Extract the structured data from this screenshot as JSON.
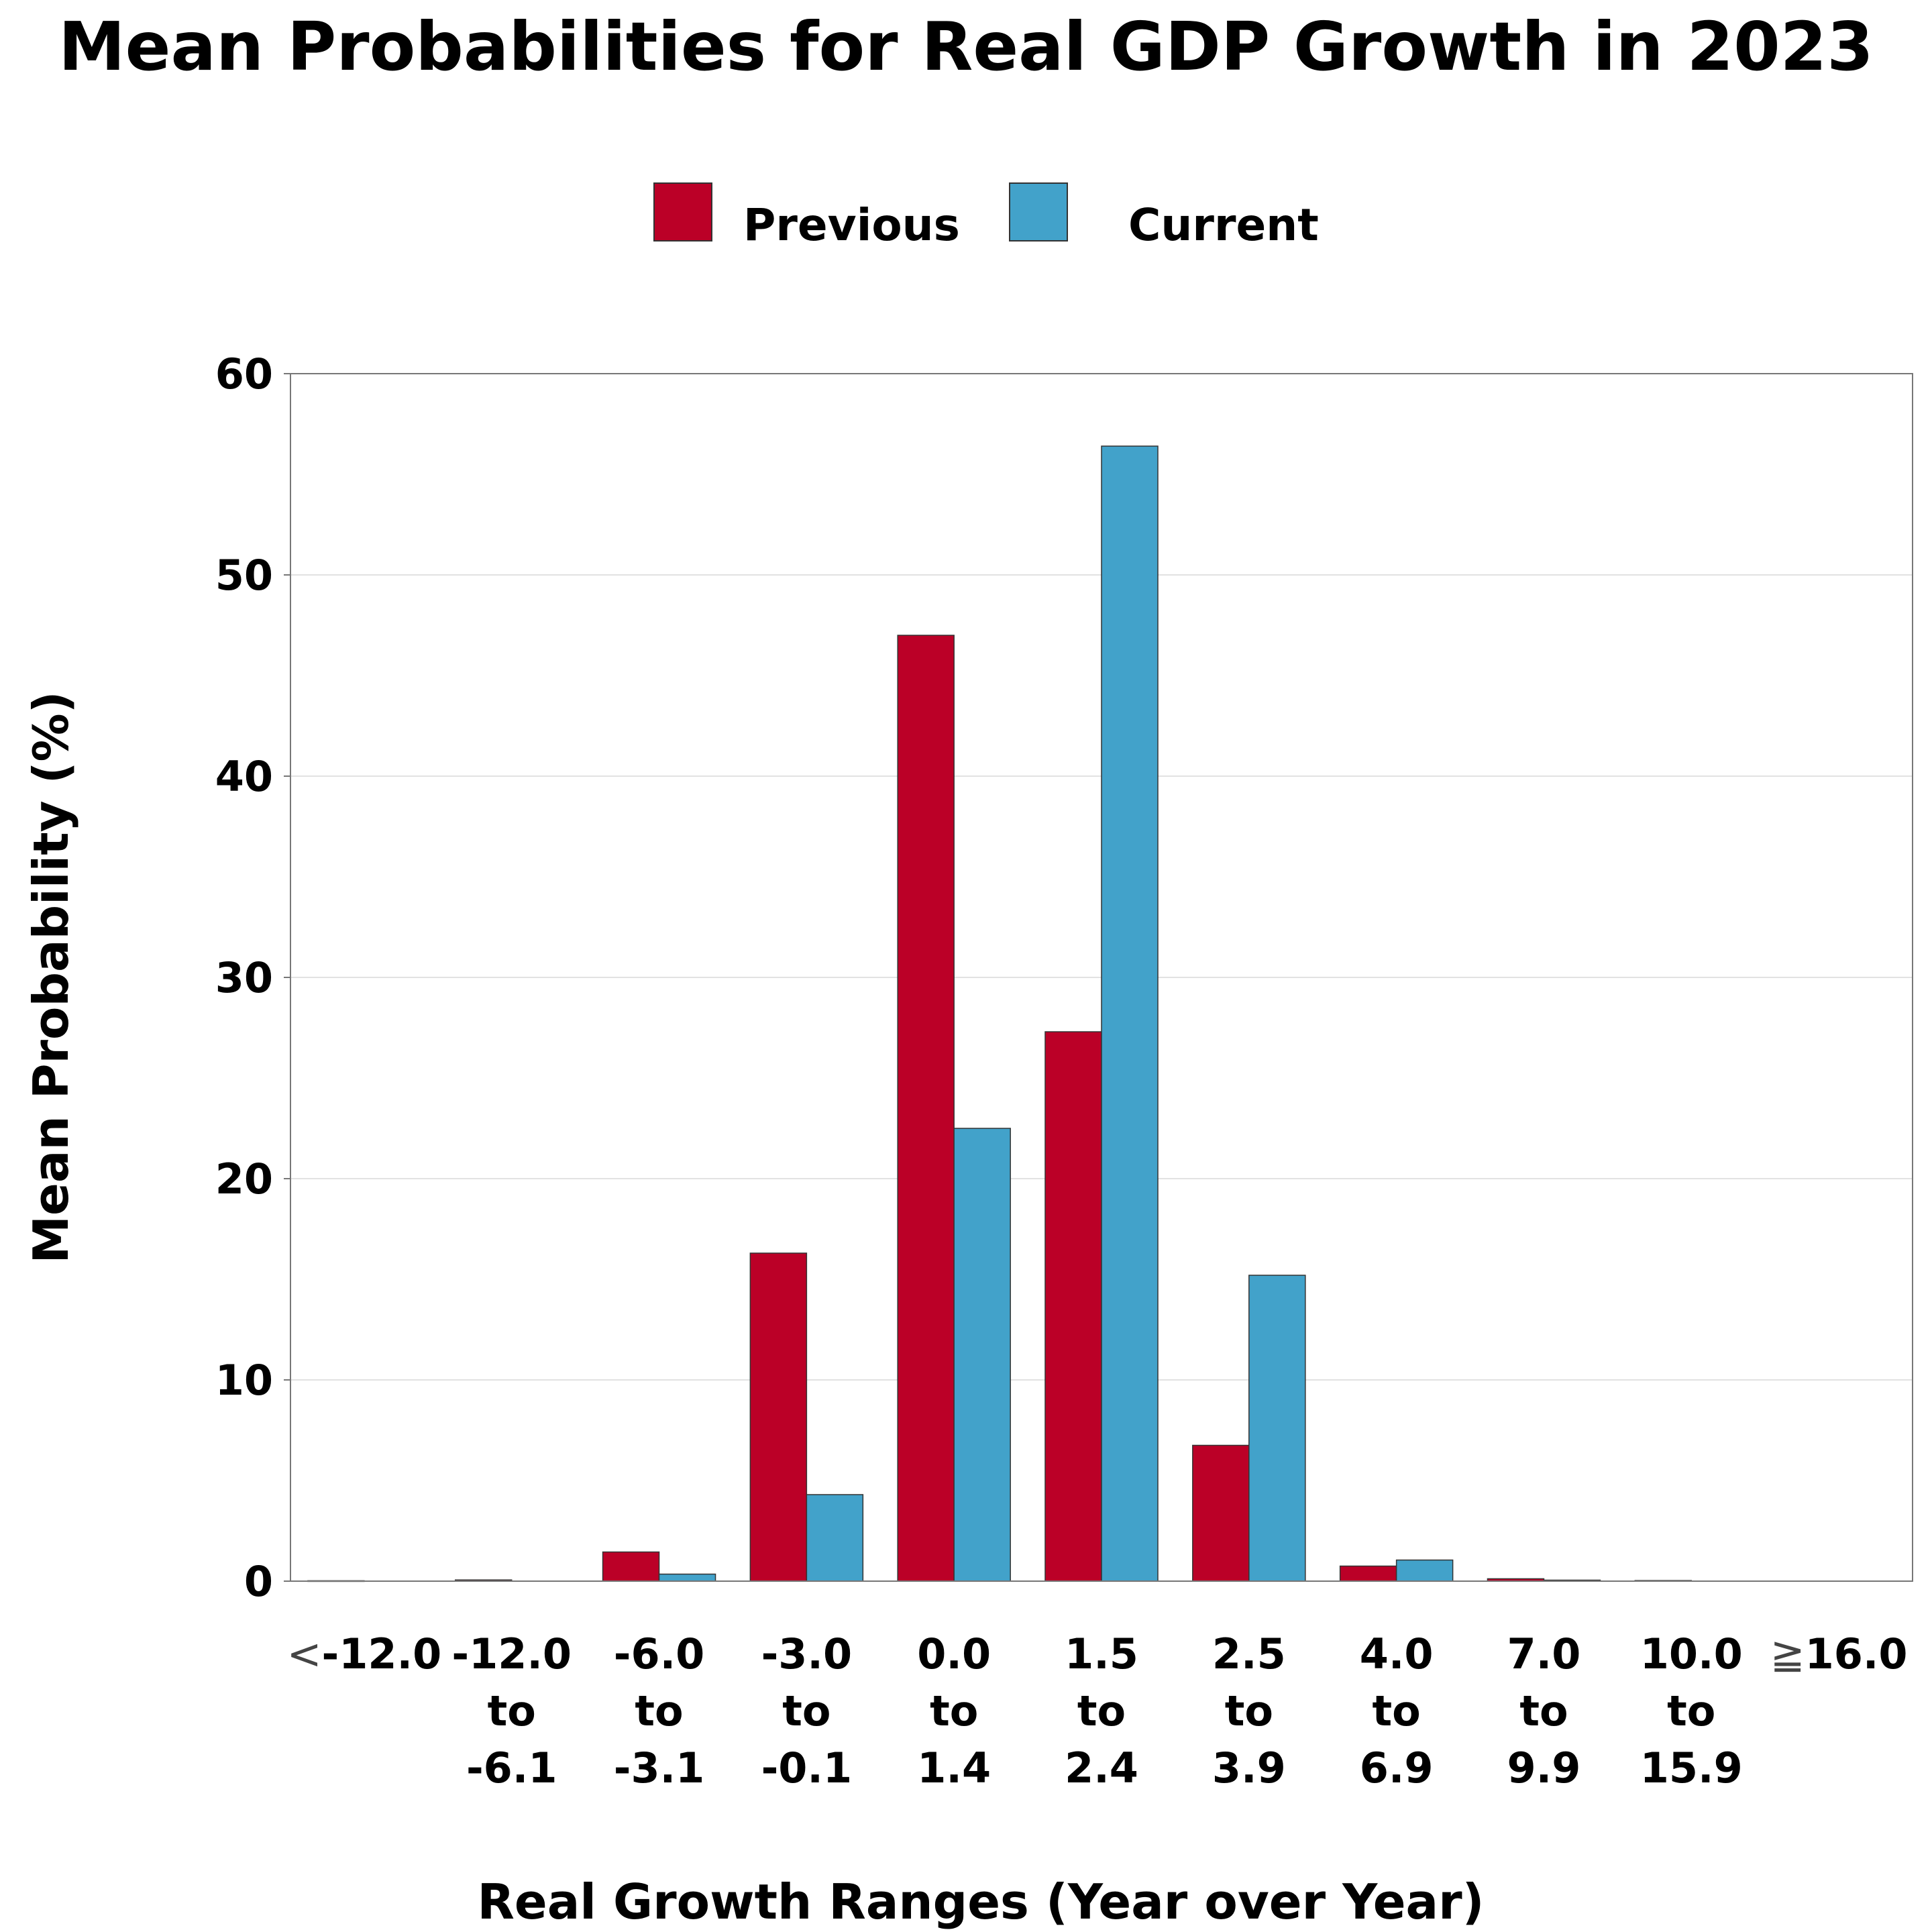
{
  "chart_data": {
    "type": "bar",
    "title": "Mean Probabilities for Real GDP Growth in 2023",
    "xlabel": "Real Growth Ranges (Year over Year)",
    "ylabel": "Mean Probability (%)",
    "ylim": [
      0,
      60
    ],
    "yticks": [
      "0",
      "10",
      "20",
      "30",
      "40",
      "50",
      "60"
    ],
    "grid": true,
    "legend_position": "top-center",
    "categories": [
      {
        "symbol": "<",
        "lines": [
          "-12.0"
        ]
      },
      {
        "symbol": "",
        "lines": [
          "-12.0",
          "to",
          "-6.1"
        ]
      },
      {
        "symbol": "",
        "lines": [
          "-6.0",
          "to",
          "-3.1"
        ]
      },
      {
        "symbol": "",
        "lines": [
          "-3.0",
          "to",
          "-0.1"
        ]
      },
      {
        "symbol": "",
        "lines": [
          "0.0",
          "to",
          "1.4"
        ]
      },
      {
        "symbol": "",
        "lines": [
          "1.5",
          "to",
          "2.4"
        ]
      },
      {
        "symbol": "",
        "lines": [
          "2.5",
          "to",
          "3.9"
        ]
      },
      {
        "symbol": "",
        "lines": [
          "4.0",
          "to",
          "6.9"
        ]
      },
      {
        "symbol": "",
        "lines": [
          "7.0",
          "to",
          "9.9"
        ]
      },
      {
        "symbol": "",
        "lines": [
          "10.0",
          "to",
          "15.9"
        ]
      },
      {
        "symbol": "≧",
        "lines": [
          "16.0"
        ]
      }
    ],
    "series": [
      {
        "name": "Previous",
        "color": "#BB0027",
        "values": [
          0.02,
          0.06,
          1.45,
          16.3,
          47.0,
          27.3,
          6.75,
          0.75,
          0.12,
          0.03,
          0.0
        ]
      },
      {
        "name": "Current",
        "color": "#42A2CA",
        "values": [
          0.0,
          0.0,
          0.35,
          4.3,
          22.5,
          56.4,
          15.2,
          1.05,
          0.05,
          0.0,
          0.0
        ]
      }
    ]
  }
}
